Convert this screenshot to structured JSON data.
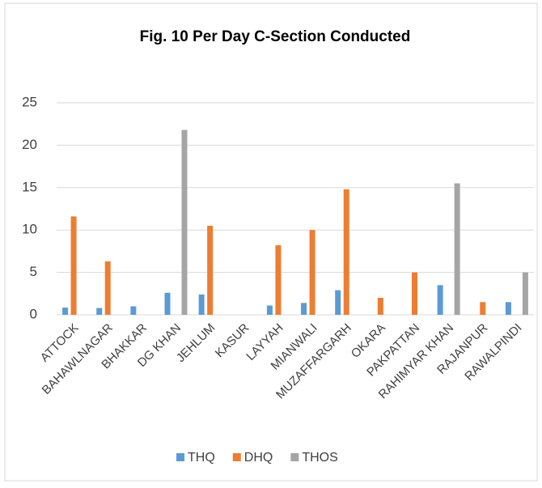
{
  "chart_data": {
    "type": "bar",
    "title": "Fig. 10  Per Day C-Section Conducted",
    "categories": [
      "ATTOCK",
      "BAHAWLNAGAR",
      "BHAKKAR",
      "DG KHAN",
      "JEHLUM",
      "KASUR",
      "LAYYAH",
      "MIANWALI",
      "MUZAFFARGARH",
      "OKARA",
      "PAKPATTAN",
      "RAHIMYAR KHAN",
      "RAJANPUR",
      "RAWALPINDI"
    ],
    "series": [
      {
        "name": "THQ",
        "color": "#5b9bd5",
        "values": [
          0.85,
          0.8,
          1.0,
          2.6,
          2.4,
          0,
          1.1,
          1.4,
          2.9,
          0,
          0,
          3.5,
          0,
          1.5
        ]
      },
      {
        "name": "DHQ",
        "color": "#ed7d31",
        "values": [
          11.6,
          6.3,
          0,
          0,
          10.5,
          0,
          8.2,
          10.0,
          14.8,
          2.0,
          5.0,
          0,
          1.5,
          0
        ]
      },
      {
        "name": "THOS",
        "color": "#a5a5a5",
        "values": [
          0,
          0,
          0,
          21.8,
          0,
          0,
          0,
          0,
          0,
          0,
          0,
          15.5,
          0,
          5.0
        ]
      }
    ],
    "ylim": [
      0,
      25
    ],
    "yticks": [
      0,
      5,
      10,
      15,
      20,
      25
    ],
    "grid": true,
    "legend": "bottom"
  }
}
